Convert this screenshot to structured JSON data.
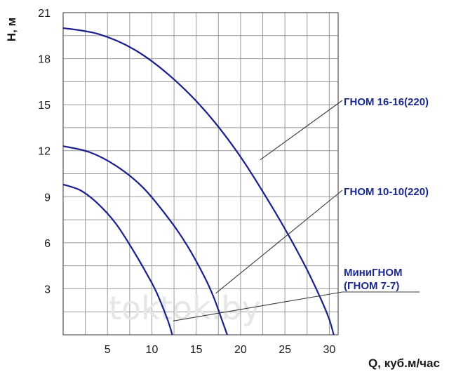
{
  "watermark": "toktok.by",
  "chart_data": {
    "type": "line",
    "xlabel": "Q, куб.м/час",
    "ylabel": "H, м",
    "xlim": [
      0,
      31
    ],
    "ylim": [
      0,
      21
    ],
    "x_ticks": [
      5,
      10,
      15,
      20,
      25,
      30
    ],
    "y_ticks": [
      3,
      6,
      9,
      12,
      15,
      18,
      21
    ],
    "grid": true,
    "colors": {
      "curve": "#1a1f8c",
      "grid": "#9a9a9a",
      "leader": "#3a3a3a"
    },
    "series": [
      {
        "name": "ГНОМ 16-16(220)",
        "x": [
          0,
          4,
          8,
          12,
          16,
          20,
          24,
          27,
          29,
          30,
          30.5
        ],
        "y": [
          20.0,
          19.6,
          18.6,
          16.9,
          14.6,
          11.6,
          7.9,
          4.8,
          2.4,
          1.0,
          0
        ],
        "label_lines": [
          "ГНОМ 16-16(220)"
        ],
        "label_point": [
          22.2,
          11.4
        ]
      },
      {
        "name": "ГНОМ 10-10(220)",
        "x": [
          0,
          3,
          6,
          9,
          12,
          14,
          16,
          17,
          18,
          18.5
        ],
        "y": [
          12.3,
          11.9,
          11.0,
          9.6,
          7.5,
          5.8,
          3.7,
          2.4,
          0.8,
          0
        ],
        "label_lines": [
          "ГНОМ 10-10(220)"
        ],
        "label_point": [
          17.2,
          2.7
        ]
      },
      {
        "name": "МиниГНОМ (ГНОМ 7-7)",
        "x": [
          0,
          2,
          4,
          6,
          8,
          9.5,
          10.5,
          11.5,
          12,
          12.3
        ],
        "y": [
          9.8,
          9.4,
          8.5,
          7.2,
          5.4,
          3.9,
          2.8,
          1.4,
          0.6,
          0
        ],
        "label_lines": [
          "МиниГНОМ",
          "(ГНОМ 7-7)"
        ],
        "label_point": [
          12.4,
          0.9
        ]
      }
    ]
  }
}
